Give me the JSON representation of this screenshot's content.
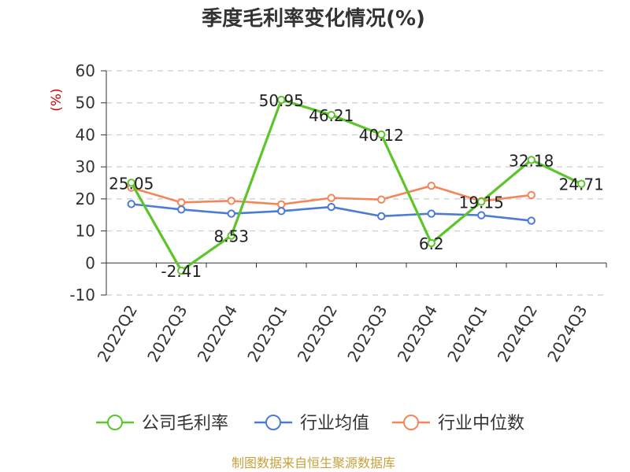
{
  "chart_data": {
    "type": "line",
    "title": "季度毛利率变化情况(%)",
    "ylabel": "(%)",
    "ylim": [
      -10,
      60
    ],
    "yticks": [
      -10,
      0,
      10,
      20,
      30,
      40,
      50,
      60
    ],
    "grid": true,
    "legend_position": "bottom",
    "categories": [
      "2022Q2",
      "2022Q3",
      "2022Q4",
      "2023Q1",
      "2023Q2",
      "2023Q3",
      "2023Q4",
      "2024Q1",
      "2024Q2",
      "2024Q3"
    ],
    "series": [
      {
        "name": "公司毛利率",
        "color": "#5cc52a",
        "values": [
          25.05,
          -2.41,
          8.53,
          50.95,
          46.21,
          40.12,
          6.2,
          19.15,
          32.18,
          24.71
        ],
        "labels": [
          "25.05",
          "-2.41",
          "8.53",
          "50.95",
          "46.21",
          "40.12",
          "6.2",
          "19.15",
          "32.18",
          "24.71"
        ]
      },
      {
        "name": "行业均值",
        "color": "#4b7bd6",
        "values": [
          18.4,
          16.7,
          15.4,
          16.2,
          17.5,
          14.6,
          15.4,
          14.9,
          13.2,
          null
        ]
      },
      {
        "name": "行业中位数",
        "color": "#f4865a",
        "values": [
          23.5,
          18.9,
          19.4,
          18.3,
          20.3,
          19.8,
          24.1,
          19.3,
          21.2,
          null
        ]
      }
    ]
  },
  "source": "制图数据来自恒生聚源数据库"
}
